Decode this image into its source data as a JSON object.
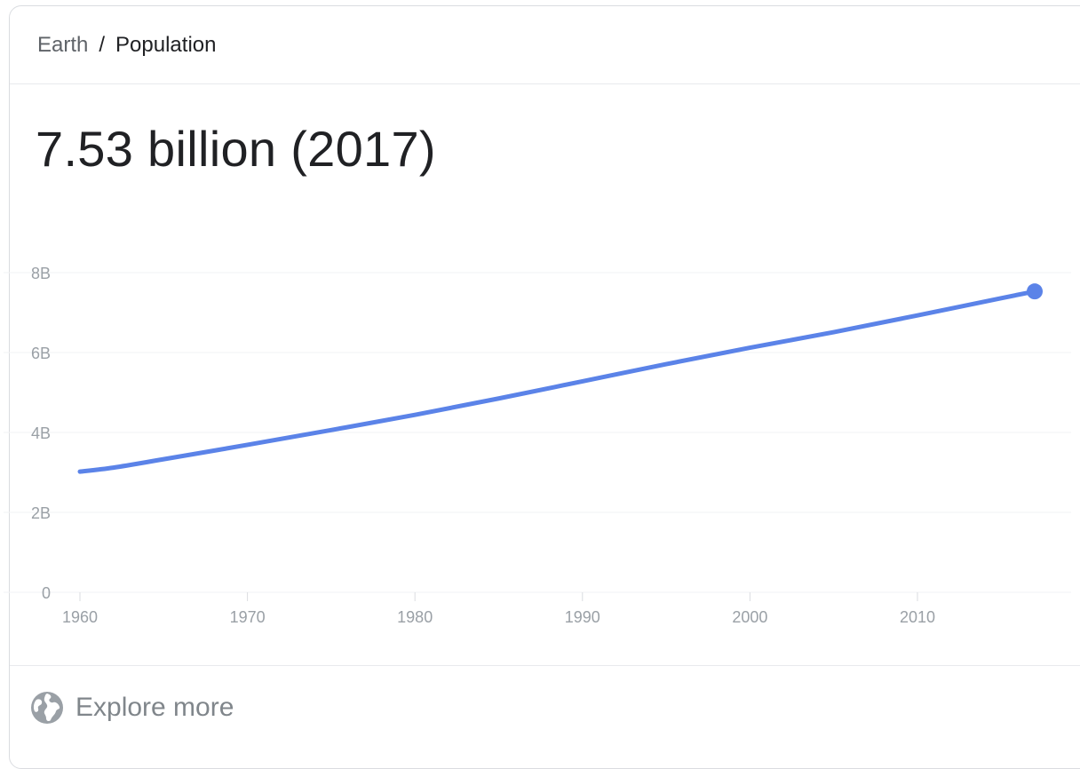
{
  "breadcrumb": {
    "root": "Earth",
    "separator": "/",
    "current": "Population"
  },
  "headline": "7.53 billion (2017)",
  "explore": {
    "label": "Explore more",
    "icon": "globe-icon"
  },
  "colors": {
    "line": "#5b83e8",
    "grid": "#f1f3f4",
    "tick": "#9aa0a6",
    "text": "#202124",
    "muted": "#5f6368"
  },
  "chart_data": {
    "type": "line",
    "title": "",
    "xlabel": "",
    "ylabel": "",
    "xlim": [
      1960,
      2017
    ],
    "ylim": [
      0,
      8000000000
    ],
    "grid": true,
    "legend": "none",
    "x_ticks": [
      {
        "value": 1960,
        "label": "1960"
      },
      {
        "value": 1970,
        "label": "1970"
      },
      {
        "value": 1980,
        "label": "1980"
      },
      {
        "value": 1990,
        "label": "1990"
      },
      {
        "value": 2000,
        "label": "2000"
      },
      {
        "value": 2010,
        "label": "2010"
      }
    ],
    "y_ticks": [
      {
        "value": 0,
        "label": "0"
      },
      {
        "value": 2000000000,
        "label": "2B"
      },
      {
        "value": 4000000000,
        "label": "4B"
      },
      {
        "value": 6000000000,
        "label": "6B"
      },
      {
        "value": 8000000000,
        "label": "8B"
      }
    ],
    "series": [
      {
        "x": [
          1960,
          1962,
          1965,
          1970,
          1975,
          1980,
          1985,
          1990,
          1995,
          2000,
          2005,
          2010,
          2015,
          2017
        ],
        "values": [
          3020000000,
          3120000000,
          3330000000,
          3690000000,
          4060000000,
          4440000000,
          4850000000,
          5280000000,
          5710000000,
          6120000000,
          6510000000,
          6930000000,
          7360000000,
          7530000000
        ],
        "endpoint_marker": true
      }
    ]
  }
}
